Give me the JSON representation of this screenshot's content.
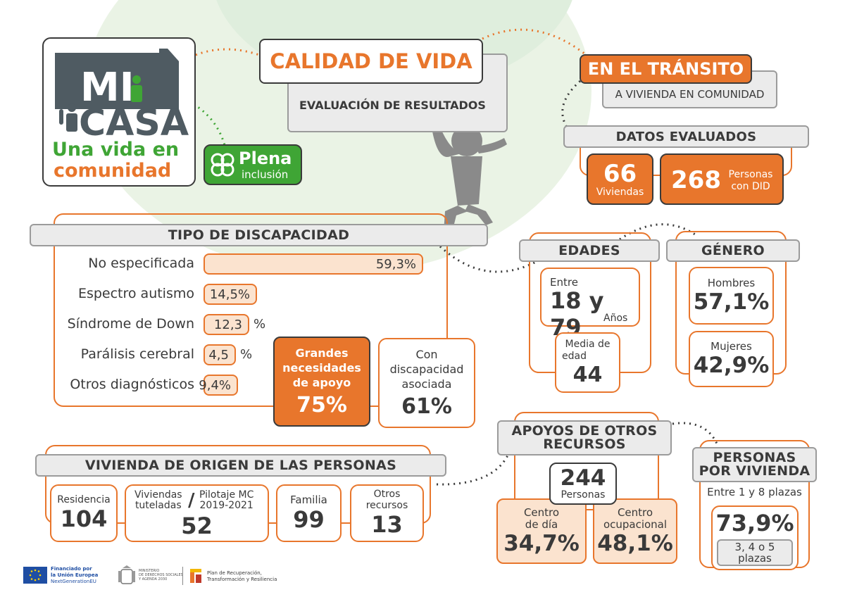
{
  "logo": {
    "line1": "MI",
    "line2": "CASA",
    "line3": "Una vida en",
    "line4": "comunidad",
    "partner_line1": "Plena",
    "partner_line2": "inclusión"
  },
  "header": {
    "title": "CALIDAD DE VIDA",
    "subtitle": "EVALUACIÓN DE RESULTADOS",
    "transit_title": "EN EL TRÁNSITO",
    "transit_sub": "A VIVIENDA EN COMUNIDAD"
  },
  "datos": {
    "title": "DATOS EVALUADOS",
    "viviendas_num": "66",
    "viviendas_label": "Viviendas",
    "personas_num": "268",
    "personas_label1": "Personas",
    "personas_label2": "con DID"
  },
  "discapacidad": {
    "title": "TIPO DE DISCAPACIDAD",
    "rows": [
      {
        "label": "No especificada",
        "value": "59,3%",
        "suffix": "",
        "fraction": 0.593
      },
      {
        "label": "Espectro autismo",
        "value": "14,5%",
        "suffix": "",
        "fraction": 0.145
      },
      {
        "label": "Síndrome de Down",
        "value": "12,3",
        "suffix": "%",
        "fraction": 0.123
      },
      {
        "label": "Parálisis cerebral",
        "value": "4,5",
        "suffix": "%",
        "fraction": 0.045
      },
      {
        "label": "Otros diagnósticos",
        "value": "9,4%",
        "suffix": "",
        "fraction": 0.094
      }
    ],
    "apoyo_label1": "Grandes",
    "apoyo_label2": "necesidades",
    "apoyo_label3": "de apoyo",
    "apoyo_value": "75%",
    "asociada_label1": "Con",
    "asociada_label2": "discapacidad",
    "asociada_label3": "asociada",
    "asociada_value": "61%"
  },
  "edades": {
    "title": "EDADES",
    "entre": "Entre",
    "range": "18 y 79",
    "unit": "Años",
    "media_label1": "Media de",
    "media_label2": "edad",
    "media_value": "44"
  },
  "genero": {
    "title": "GÉNERO",
    "hombres_label": "Hombres",
    "hombres_value": "57,1%",
    "mujeres_label": "Mujeres",
    "mujeres_value": "42,9%"
  },
  "origen": {
    "title": "VIVIENDA DE ORIGEN DE LAS PERSONAS",
    "residencia_label": "Residencia",
    "residencia_value": "104",
    "tuteladas_label1": "Viviendas",
    "tuteladas_label2": "tuteladas",
    "slash": "/",
    "piloto_label1": "Pilotaje MC",
    "piloto_label2": "2019-2021",
    "tuteladas_value": "52",
    "familia_label": "Familia",
    "familia_value": "99",
    "otros_label1": "Otros",
    "otros_label2": "recursos",
    "otros_value": "13"
  },
  "apoyos": {
    "title1": "APOYOS DE OTROS",
    "title2": "RECURSOS",
    "total": "244",
    "total_label": "Personas",
    "dia_label1": "Centro",
    "dia_label2": "de día",
    "dia_value": "34,7%",
    "ocup_label1": "Centro",
    "ocup_label2": "ocupacional",
    "ocup_value": "48,1%"
  },
  "por_vivienda": {
    "title1": "PERSONAS",
    "title2": "POR VIVIENDA",
    "range": "Entre 1 y 8 plazas",
    "value": "73,9%",
    "plazas1": "3, 4 o 5",
    "plazas2": "plazas"
  },
  "footer": {
    "eu1": "Financiado por",
    "eu2": "la Unión Europea",
    "eu3": "NextGenerationEU",
    "min1": "MINISTERIO",
    "min2": "DE DERECHOS SOCIALES",
    "min3": "Y AGENDA 2030",
    "plan1": "Plan de Recuperación,",
    "plan2": "Transformación y Resiliencia"
  },
  "colors": {
    "orange": "#e8762c",
    "dark": "#3a3a3a",
    "green": "#3fa535",
    "grey": "#4f5b62"
  }
}
